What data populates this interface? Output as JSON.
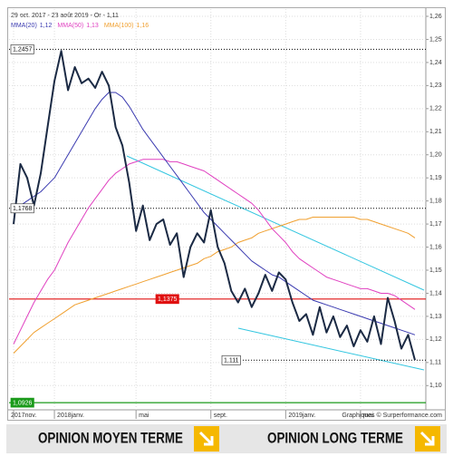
{
  "chart_data": {
    "type": "line",
    "title": "29 oct. 2017 - 23 août 2019 - Or - 1,11",
    "credit": "Graphiques © Surperformance.com",
    "categories": [
      "2017nov.",
      null,
      null,
      null,
      null,
      null,
      "2018janv.",
      null,
      null,
      null,
      null,
      null,
      null,
      null,
      null,
      null,
      null,
      null,
      "mai",
      null,
      null,
      null,
      null,
      null,
      null,
      null,
      null,
      null,
      null,
      "sept.",
      null,
      null,
      null,
      null,
      null,
      null,
      null,
      null,
      null,
      null,
      "2019janv.",
      null,
      null,
      null,
      null,
      null,
      null,
      null,
      null,
      null,
      null,
      "mai",
      null,
      null,
      null,
      null,
      null,
      null,
      null,
      null
    ],
    "series": [
      {
        "color": "#1b2a44",
        "values": [
          1.17,
          1.196,
          1.19,
          1.178,
          1.192,
          1.212,
          1.232,
          1.245,
          1.228,
          1.238,
          1.231,
          1.233,
          1.229,
          1.236,
          1.23,
          1.212,
          1.204,
          1.188,
          1.167,
          1.178,
          1.163,
          1.17,
          1.172,
          1.161,
          1.166,
          1.147,
          1.16,
          1.166,
          1.162,
          1.176,
          1.16,
          1.153,
          1.141,
          1.136,
          1.142,
          1.134,
          1.14,
          1.148,
          1.141,
          1.149,
          1.146,
          1.136,
          1.128,
          1.131,
          1.122,
          1.134,
          1.123,
          1.13,
          1.121,
          1.126,
          1.117,
          1.124,
          1.119,
          1.13,
          1.118,
          1.138,
          1.128,
          1.116,
          1.122,
          1.111
        ]
      },
      {
        "name": "MMA(20)",
        "legend_value": "1,12",
        "color": "#3a3ab0",
        "values": [
          1.177,
          1.178,
          1.18,
          1.182,
          1.184,
          1.187,
          1.19,
          1.195,
          1.2,
          1.205,
          1.21,
          1.215,
          1.22,
          1.224,
          1.227,
          1.227,
          1.225,
          1.221,
          1.216,
          1.211,
          1.207,
          1.203,
          1.199,
          1.195,
          1.191,
          1.187,
          1.183,
          1.179,
          1.175,
          1.172,
          1.169,
          1.166,
          1.163,
          1.16,
          1.157,
          1.154,
          1.152,
          1.15,
          1.148,
          1.147,
          1.145,
          1.143,
          1.141,
          1.139,
          1.137,
          1.136,
          1.135,
          1.134,
          1.133,
          1.132,
          1.131,
          1.13,
          1.129,
          1.128,
          1.127,
          1.126,
          1.125,
          1.124,
          1.123,
          1.122
        ]
      },
      {
        "name": "MMA(50)",
        "legend_value": "1,13",
        "color": "#e040c0",
        "values": [
          1.118,
          1.124,
          1.13,
          1.136,
          1.141,
          1.146,
          1.15,
          1.156,
          1.162,
          1.167,
          1.172,
          1.177,
          1.181,
          1.185,
          1.189,
          1.192,
          1.194,
          1.196,
          1.197,
          1.198,
          1.198,
          1.198,
          1.198,
          1.197,
          1.197,
          1.196,
          1.195,
          1.194,
          1.193,
          1.191,
          1.189,
          1.187,
          1.185,
          1.183,
          1.181,
          1.179,
          1.176,
          1.172,
          1.168,
          1.165,
          1.162,
          1.158,
          1.155,
          1.153,
          1.151,
          1.149,
          1.147,
          1.146,
          1.145,
          1.144,
          1.143,
          1.142,
          1.142,
          1.141,
          1.14,
          1.14,
          1.139,
          1.137,
          1.135,
          1.133
        ]
      },
      {
        "name": "MMA(100)",
        "legend_value": "1,16",
        "color": "#f0a030",
        "values": [
          1.114,
          1.117,
          1.12,
          1.123,
          1.125,
          1.127,
          1.129,
          1.131,
          1.133,
          1.135,
          1.136,
          1.137,
          1.138,
          1.139,
          1.14,
          1.141,
          1.142,
          1.143,
          1.144,
          1.145,
          1.146,
          1.147,
          1.148,
          1.149,
          1.15,
          1.151,
          1.152,
          1.153,
          1.155,
          1.156,
          1.158,
          1.159,
          1.16,
          1.162,
          1.163,
          1.164,
          1.166,
          1.167,
          1.168,
          1.169,
          1.17,
          1.171,
          1.172,
          1.172,
          1.173,
          1.173,
          1.173,
          1.173,
          1.173,
          1.173,
          1.173,
          1.172,
          1.172,
          1.171,
          1.17,
          1.169,
          1.168,
          1.167,
          1.166,
          1.164
        ]
      }
    ],
    "levels": [
      {
        "value": 1.2457,
        "label": "1,2457",
        "color": "#000000",
        "style": "dotted"
      },
      {
        "value": 1.1768,
        "label": "1,1768",
        "color": "#000000",
        "style": "dotted"
      },
      {
        "value": 1.1375,
        "label": "1,1375",
        "color": "#e01010",
        "style": "solid"
      },
      {
        "value": 1.111,
        "label": "1,111",
        "color": "#000000",
        "style": "dotted"
      },
      {
        "value": 1.0926,
        "label": "1,0926",
        "color": "#1a9a1a",
        "style": "solid"
      }
    ],
    "ylim": [
      1.0895,
      1.26
    ],
    "yticks": [
      {
        "value": 1.1,
        "label": "1,10"
      },
      {
        "value": 1.11,
        "label": "1,11"
      },
      {
        "value": 1.12,
        "label": "1,12"
      },
      {
        "value": 1.13,
        "label": "1,13"
      },
      {
        "value": 1.14,
        "label": "1,14"
      },
      {
        "value": 1.15,
        "label": "1,15"
      },
      {
        "value": 1.16,
        "label": "1,16"
      },
      {
        "value": 1.17,
        "label": "1,17"
      },
      {
        "value": 1.18,
        "label": "1,18"
      },
      {
        "value": 1.19,
        "label": "1,19"
      },
      {
        "value": 1.2,
        "label": "1,20"
      },
      {
        "value": 1.21,
        "label": "1,21"
      },
      {
        "value": 1.22,
        "label": "1,22"
      },
      {
        "value": 1.23,
        "label": "1,23"
      },
      {
        "value": 1.24,
        "label": "1,24"
      },
      {
        "value": 1.25,
        "label": "1,25"
      },
      {
        "value": 1.26,
        "label": "1,26"
      }
    ],
    "grid": true
  },
  "buttons": [
    "OPINION MOYEN TERME",
    "OPINION LONG TERME"
  ]
}
